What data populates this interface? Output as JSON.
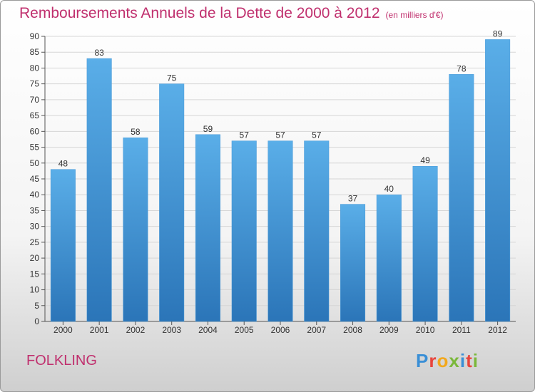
{
  "title": "Remboursements Annuels de la Dette de 2000 à 2012",
  "unit_note": "(en milliers d'€)",
  "commune": "FOLKLING",
  "logo": {
    "letters": [
      "P",
      "r",
      "o",
      "x",
      "i",
      "t",
      "i"
    ],
    "colors": [
      "#3a8fd6",
      "#e8453c",
      "#f2a81d",
      "#7ab83a",
      "#3a8fd6",
      "#e8453c",
      "#7ab83a"
    ]
  },
  "colors": {
    "bar_top": "#5aaee8",
    "bar_bottom": "#2b75b8",
    "title": "#c0306e"
  },
  "chart_data": {
    "type": "bar",
    "categories": [
      "2000",
      "2001",
      "2002",
      "2003",
      "2004",
      "2005",
      "2006",
      "2007",
      "2008",
      "2009",
      "2010",
      "2011",
      "2012"
    ],
    "values": [
      48,
      83,
      58,
      75,
      59,
      57,
      57,
      57,
      37,
      40,
      49,
      78,
      89
    ],
    "ylim": [
      0,
      90
    ],
    "yticks": [
      0,
      5,
      10,
      15,
      20,
      25,
      30,
      35,
      40,
      45,
      50,
      55,
      60,
      65,
      70,
      75,
      80,
      85,
      90
    ],
    "grid": true
  }
}
